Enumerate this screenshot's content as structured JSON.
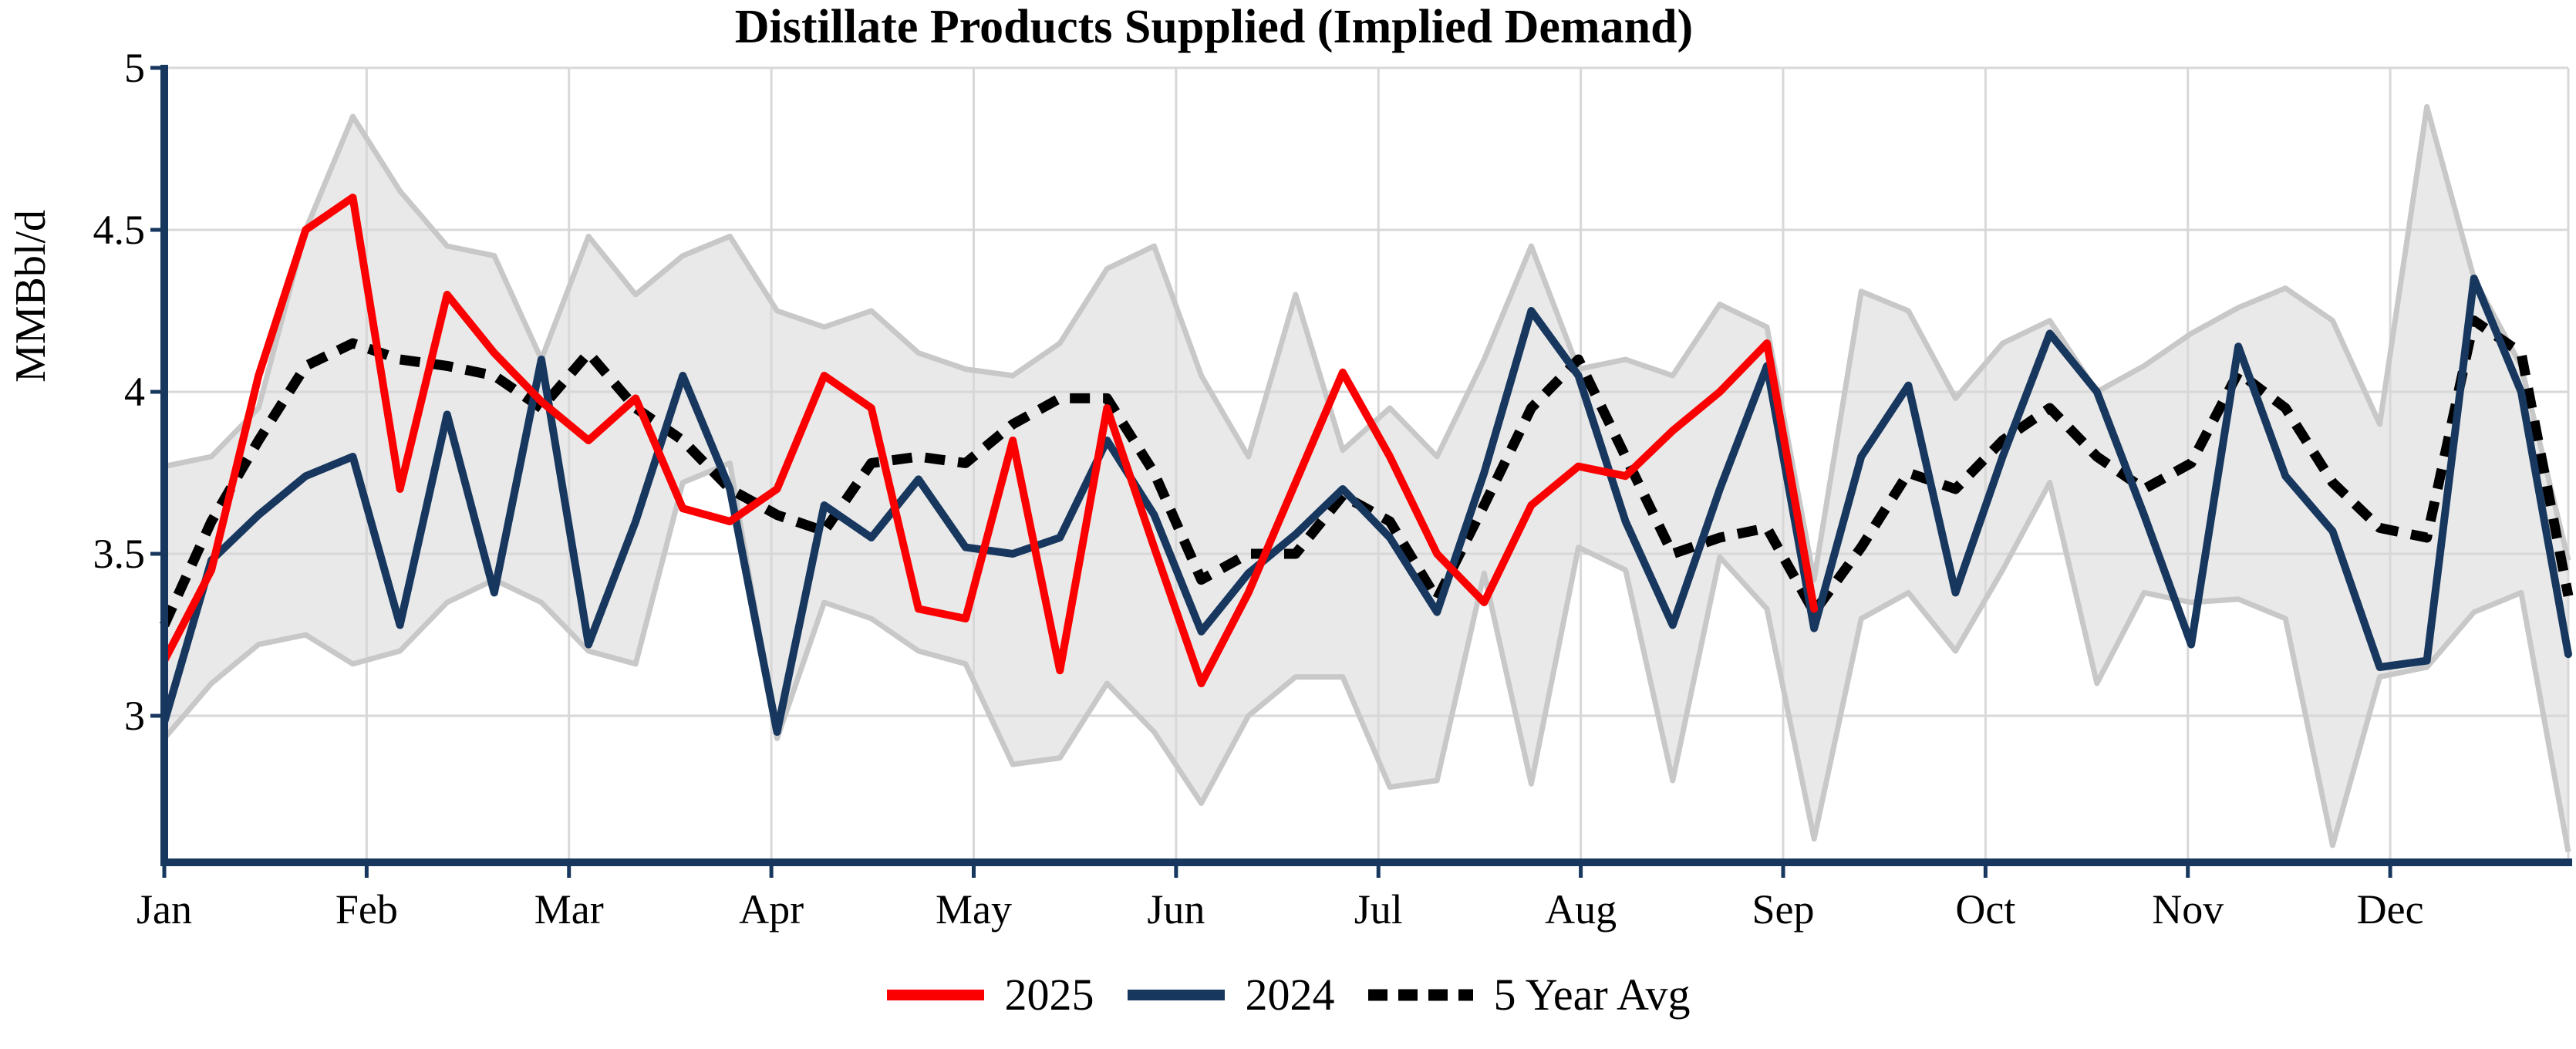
{
  "header": {
    "title": "Distillate Products Supplied (Implied Demand)"
  },
  "axes": {
    "y_label": "MMBbl/d",
    "y_ticks": [
      "5",
      "4.5",
      "4",
      "3.5",
      "3"
    ],
    "y_tick_values": [
      5,
      4.5,
      4,
      3.5,
      3
    ],
    "x_tick_labels": [
      "Jan",
      "Feb",
      "Mar",
      "Apr",
      "May",
      "Jun",
      "Jul",
      "Aug",
      "Sep",
      "Oct",
      "Nov",
      "Dec"
    ]
  },
  "legend": {
    "items": [
      {
        "label": "2025",
        "color": "#fa0000",
        "style": "solid"
      },
      {
        "label": "2024",
        "color": "#17375e",
        "style": "solid"
      },
      {
        "label": "5 Year Avg",
        "color": "#000000",
        "style": "dotted"
      }
    ]
  },
  "colors": {
    "accent_red": "#fa0000",
    "accent_navy": "#17375e",
    "avg_black": "#000000",
    "band_fill": "#e9e9e9",
    "band_edge": "#c8c8c8",
    "gridline": "#d8d8d8",
    "axis_spine": "#17375e",
    "text": "#000000"
  },
  "chart_data": {
    "type": "line",
    "title": "Distillate Products Supplied (Implied Demand)",
    "ylabel": "MMBbl/d",
    "xlabel": "",
    "ylim": [
      2.55,
      5.0
    ],
    "x_unit": "week_of_year",
    "x_range_weeks": [
      0,
      51
    ],
    "grid": true,
    "legend_position": "bottom",
    "month_tick_labels": [
      "Jan",
      "Feb",
      "Mar",
      "Apr",
      "May",
      "Jun",
      "Jul",
      "Aug",
      "Sep",
      "Oct",
      "Nov",
      "Dec"
    ],
    "series": [
      {
        "name": "2025",
        "color": "#fa0000",
        "style": "solid",
        "start_week": 0,
        "values": [
          3.17,
          3.45,
          4.05,
          4.5,
          4.6,
          3.7,
          4.3,
          4.12,
          3.97,
          3.85,
          3.98,
          3.64,
          3.6,
          3.7,
          4.05,
          3.95,
          3.33,
          3.3,
          3.85,
          3.14,
          3.95,
          3.52,
          3.1,
          3.38,
          3.72,
          4.06,
          3.8,
          3.5,
          3.35,
          3.65,
          3.77,
          3.74,
          3.88,
          4.0,
          4.15,
          3.33
        ]
      },
      {
        "name": "2024",
        "color": "#17375e",
        "style": "solid",
        "start_week": 0,
        "values": [
          2.98,
          3.48,
          3.62,
          3.74,
          3.8,
          3.28,
          3.93,
          3.38,
          4.1,
          3.22,
          3.6,
          4.05,
          3.7,
          2.95,
          3.65,
          3.55,
          3.73,
          3.52,
          3.5,
          3.55,
          3.85,
          3.62,
          3.26,
          3.44,
          3.56,
          3.7,
          3.55,
          3.32,
          3.75,
          4.25,
          4.05,
          3.6,
          3.28,
          3.7,
          4.08,
          3.27,
          3.8,
          4.02,
          3.38,
          3.8,
          4.18,
          4.0,
          3.62,
          3.22,
          4.14,
          3.74,
          3.57,
          3.15,
          3.17,
          4.35,
          4.0,
          3.19
        ]
      },
      {
        "name": "5 Year Avg",
        "color": "#000000",
        "style": "dotted",
        "start_week": 0,
        "values": [
          3.28,
          3.6,
          3.85,
          4.08,
          4.15,
          4.1,
          4.08,
          4.05,
          3.95,
          4.12,
          3.95,
          3.85,
          3.7,
          3.62,
          3.57,
          3.78,
          3.8,
          3.78,
          3.9,
          3.98,
          3.98,
          3.75,
          3.42,
          3.5,
          3.5,
          3.68,
          3.6,
          3.36,
          3.65,
          3.95,
          4.1,
          3.8,
          3.5,
          3.55,
          3.58,
          3.32,
          3.52,
          3.75,
          3.7,
          3.85,
          3.95,
          3.8,
          3.7,
          3.78,
          4.06,
          3.95,
          3.72,
          3.58,
          3.55,
          4.22,
          4.12,
          3.37
        ]
      }
    ],
    "band": {
      "name": "5 Year Range",
      "fill": "#e9e9e9",
      "edge": "#c8c8c8",
      "top": [
        3.77,
        3.8,
        3.95,
        4.5,
        4.85,
        4.62,
        4.45,
        4.42,
        4.1,
        4.48,
        4.3,
        4.42,
        4.48,
        4.25,
        4.2,
        4.25,
        4.12,
        4.07,
        4.05,
        4.15,
        4.38,
        4.45,
        4.05,
        3.8,
        4.3,
        3.82,
        3.95,
        3.8,
        4.1,
        4.45,
        4.07,
        4.1,
        4.05,
        4.27,
        4.2,
        3.42,
        4.31,
        4.25,
        3.98,
        4.15,
        4.22,
        4.0,
        4.08,
        4.18,
        4.26,
        4.32,
        4.22,
        3.9,
        4.88,
        4.35,
        4.08,
        3.48
      ],
      "bottom": [
        2.93,
        3.1,
        3.22,
        3.25,
        3.16,
        3.2,
        3.35,
        3.42,
        3.35,
        3.2,
        3.16,
        3.72,
        3.78,
        2.93,
        3.35,
        3.3,
        3.2,
        3.16,
        2.85,
        2.87,
        3.1,
        2.95,
        2.73,
        3.0,
        3.12,
        3.12,
        2.78,
        2.8,
        3.44,
        2.79,
        3.52,
        3.45,
        2.8,
        3.49,
        3.33,
        2.62,
        3.3,
        3.38,
        3.2,
        3.45,
        3.72,
        3.1,
        3.38,
        3.35,
        3.36,
        3.3,
        2.6,
        3.12,
        3.15,
        3.32,
        3.38,
        2.58
      ]
    }
  },
  "geometry_note": "weekly data Jan-Dec; 2025 series ends first week of September"
}
